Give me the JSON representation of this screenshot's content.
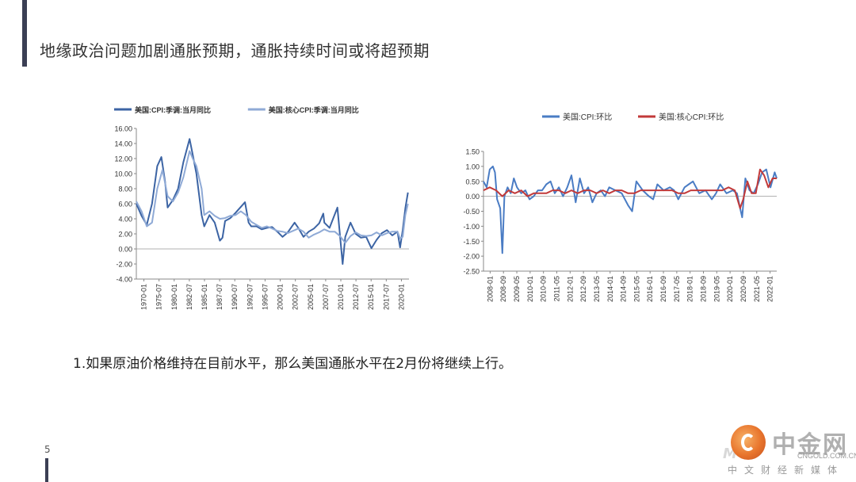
{
  "page": {
    "title": "地缘政治问题加剧通胀预期，通胀持续时间或将超预期",
    "body_text": "1.如果原油价格维持在目前水平，那么美国通胀水平在2月份将继续上行。",
    "page_number": "5"
  },
  "watermark": {
    "brand": "中金网",
    "url": "CNGOLD.COM.CN",
    "subtitle": "中文财经新媒体",
    "ghost": "M"
  },
  "colors": {
    "accent_bar": "#3b3f54",
    "series_dark_blue": "#3c64a4",
    "series_light_blue": "#8faad6",
    "series_mid_blue": "#4a7cc4",
    "series_red": "#c23a3a"
  },
  "chart_data": [
    {
      "type": "line",
      "legend_placement": "top",
      "grid": false,
      "ylim": [
        -4,
        16
      ],
      "yticks": [
        "16.00",
        "14.00",
        "12.00",
        "10.00",
        "8.00",
        "6.00",
        "4.00",
        "2.00",
        "0.00",
        "-2.00",
        "-4.00"
      ],
      "xticks": [
        "1970-01",
        "1975-07",
        "1980-01",
        "1982-07",
        "1985-01",
        "1987-07",
        "1990-07",
        "1992-07",
        "1995-07",
        "2000-01",
        "2002-07",
        "2005-01",
        "2007-07",
        "2010-01",
        "2012-07",
        "2015-01",
        "2017-07",
        "2020-01"
      ],
      "xlim": [
        1970.0,
        2022.2
      ],
      "series": [
        {
          "name": "美国:CPI:季调:当月同比",
          "color": "#3c64a4",
          "x": [
            1970,
            1971,
            1972,
            1973,
            1974,
            1974.8,
            1975.5,
            1976,
            1977,
            1978,
            1979,
            1980.2,
            1980.8,
            1981.5,
            1982.5,
            1983,
            1984,
            1985,
            1986,
            1986.5,
            1987,
            1988,
            1989,
            1990.8,
            1991.5,
            1992,
            1993,
            1994,
            1995,
            1996,
            1997,
            1998,
            1999,
            2000.3,
            2001,
            2002,
            2003,
            2004,
            2005,
            2005.8,
            2006,
            2007,
            2008.5,
            2009.5,
            2010,
            2011,
            2012,
            2013,
            2014,
            2015,
            2016,
            2017,
            2018,
            2019,
            2020,
            2020.5,
            2021,
            2021.5,
            2022
          ],
          "y": [
            6.0,
            4.4,
            3.2,
            6.0,
            11.0,
            12.2,
            9.0,
            5.5,
            6.5,
            8.0,
            11.5,
            14.6,
            12.5,
            10.0,
            4.5,
            3.0,
            4.5,
            3.5,
            1.1,
            1.5,
            3.7,
            4.1,
            4.8,
            6.2,
            3.5,
            3.0,
            3.0,
            2.6,
            2.8,
            2.9,
            2.3,
            1.6,
            2.2,
            3.5,
            2.8,
            1.6,
            2.3,
            2.7,
            3.4,
            4.7,
            3.5,
            2.8,
            5.5,
            -2.0,
            1.6,
            3.5,
            2.0,
            1.5,
            1.6,
            0.1,
            1.2,
            2.1,
            2.5,
            1.8,
            2.3,
            0.2,
            2.5,
            5.4,
            7.5
          ]
        },
        {
          "name": "美国:核心CPI:季调:当月同比",
          "color": "#8faad6",
          "x": [
            1970,
            1971,
            1972,
            1973,
            1974,
            1975,
            1976,
            1977,
            1978,
            1979,
            1980.2,
            1980.8,
            1981.5,
            1982.5,
            1983,
            1984,
            1985,
            1986,
            1987,
            1988,
            1989,
            1990,
            1991,
            1992,
            1993,
            1994,
            1995,
            1996,
            1997,
            1998,
            1999,
            2000,
            2001,
            2002,
            2003,
            2004,
            2005,
            2006,
            2007,
            2008,
            2009,
            2010,
            2011,
            2012,
            2013,
            2014,
            2015,
            2016,
            2017,
            2018,
            2019,
            2020,
            2020.5,
            2021,
            2021.5,
            2022
          ],
          "y": [
            6.3,
            5.0,
            3.0,
            3.5,
            8.0,
            10.5,
            7.0,
            6.3,
            7.5,
            9.5,
            13.0,
            12.0,
            11.0,
            8.0,
            4.5,
            5.0,
            4.4,
            4.0,
            4.1,
            4.4,
            4.5,
            5.0,
            4.5,
            3.6,
            3.2,
            2.8,
            3.0,
            2.7,
            2.4,
            2.3,
            2.1,
            2.4,
            2.7,
            2.3,
            1.5,
            1.9,
            2.2,
            2.6,
            2.3,
            2.3,
            1.7,
            0.8,
            1.7,
            2.2,
            1.8,
            1.7,
            1.8,
            2.2,
            1.8,
            2.1,
            2.3,
            2.3,
            1.4,
            1.6,
            4.5,
            6.0
          ]
        }
      ]
    },
    {
      "type": "line",
      "legend_placement": "top",
      "grid": false,
      "ylim": [
        -2.5,
        1.5
      ],
      "yticks": [
        "1.50",
        "1.00",
        "0.50",
        "0.00",
        "-0.50",
        "-1.00",
        "-1.50",
        "-2.00",
        "-2.50"
      ],
      "xticks": [
        "2008-01",
        "2008-09",
        "2009-05",
        "2010-01",
        "2010-09",
        "2011-05",
        "2012-01",
        "2012-09",
        "2013-05",
        "2014-01",
        "2014-09",
        "2015-05",
        "2016-01",
        "2016-09",
        "2017-05",
        "2018-01",
        "2018-09",
        "2019-05",
        "2020-01",
        "2020-09",
        "2021-05",
        "2022-01"
      ],
      "xlim": [
        2008.0,
        2022.0
      ],
      "series": [
        {
          "name": "美国:CPI:环比",
          "color": "#4a7cc4",
          "x": [
            2008.0,
            2008.15,
            2008.3,
            2008.45,
            2008.55,
            2008.65,
            2008.8,
            2008.9,
            2009.0,
            2009.15,
            2009.3,
            2009.45,
            2009.6,
            2009.8,
            2010.0,
            2010.2,
            2010.4,
            2010.6,
            2010.8,
            2011.0,
            2011.2,
            2011.4,
            2011.6,
            2011.8,
            2012.0,
            2012.2,
            2012.4,
            2012.6,
            2012.8,
            2013.0,
            2013.2,
            2013.4,
            2013.6,
            2013.8,
            2014.0,
            2014.3,
            2014.6,
            2014.9,
            2015.1,
            2015.3,
            2015.6,
            2015.9,
            2016.1,
            2016.3,
            2016.6,
            2016.9,
            2017.1,
            2017.3,
            2017.6,
            2017.8,
            2018.0,
            2018.3,
            2018.6,
            2018.9,
            2019.1,
            2019.3,
            2019.6,
            2019.9,
            2020.1,
            2020.25,
            2020.35,
            2020.5,
            2020.7,
            2020.9,
            2021.1,
            2021.3,
            2021.5,
            2021.7,
            2021.9,
            2022.0
          ],
          "y": [
            0.5,
            0.3,
            0.9,
            1.0,
            0.8,
            -0.1,
            -0.4,
            -1.9,
            0.0,
            0.3,
            0.1,
            0.6,
            0.3,
            0.1,
            0.2,
            -0.1,
            0.0,
            0.2,
            0.2,
            0.4,
            0.5,
            0.1,
            0.3,
            0.0,
            0.3,
            0.7,
            -0.2,
            0.6,
            0.1,
            0.3,
            -0.2,
            0.1,
            0.2,
            0.0,
            0.3,
            0.2,
            0.1,
            -0.3,
            -0.5,
            0.5,
            0.2,
            0.0,
            -0.1,
            0.4,
            0.2,
            0.3,
            0.2,
            -0.1,
            0.3,
            0.4,
            0.5,
            0.1,
            0.2,
            -0.1,
            0.1,
            0.4,
            0.1,
            0.2,
            0.1,
            -0.4,
            -0.7,
            0.6,
            0.2,
            0.1,
            0.4,
            0.8,
            0.9,
            0.3,
            0.8,
            0.6
          ]
        },
        {
          "name": "美国:核心CPI:环比",
          "color": "#c23a3a",
          "x": [
            2008.0,
            2008.3,
            2008.6,
            2008.9,
            2009.2,
            2009.5,
            2009.8,
            2010.1,
            2010.4,
            2010.7,
            2011.0,
            2011.3,
            2011.6,
            2011.9,
            2012.2,
            2012.5,
            2012.8,
            2013.1,
            2013.4,
            2013.7,
            2014.0,
            2014.3,
            2014.6,
            2014.9,
            2015.2,
            2015.5,
            2015.8,
            2016.1,
            2016.4,
            2016.7,
            2017.0,
            2017.3,
            2017.6,
            2017.9,
            2018.2,
            2018.5,
            2018.8,
            2019.1,
            2019.4,
            2019.7,
            2020.0,
            2020.25,
            2020.4,
            2020.6,
            2020.8,
            2021.0,
            2021.2,
            2021.4,
            2021.6,
            2021.8,
            2022.0
          ],
          "y": [
            0.2,
            0.3,
            0.2,
            0.0,
            0.2,
            0.1,
            0.2,
            0.0,
            0.1,
            0.1,
            0.1,
            0.2,
            0.2,
            0.1,
            0.2,
            0.1,
            0.2,
            0.2,
            0.1,
            0.2,
            0.1,
            0.2,
            0.2,
            0.1,
            0.1,
            0.2,
            0.2,
            0.2,
            0.2,
            0.2,
            0.2,
            0.1,
            0.1,
            0.2,
            0.2,
            0.2,
            0.2,
            0.2,
            0.2,
            0.3,
            0.2,
            -0.4,
            -0.1,
            0.5,
            0.1,
            0.1,
            0.9,
            0.7,
            0.3,
            0.6,
            0.6
          ]
        }
      ]
    }
  ]
}
